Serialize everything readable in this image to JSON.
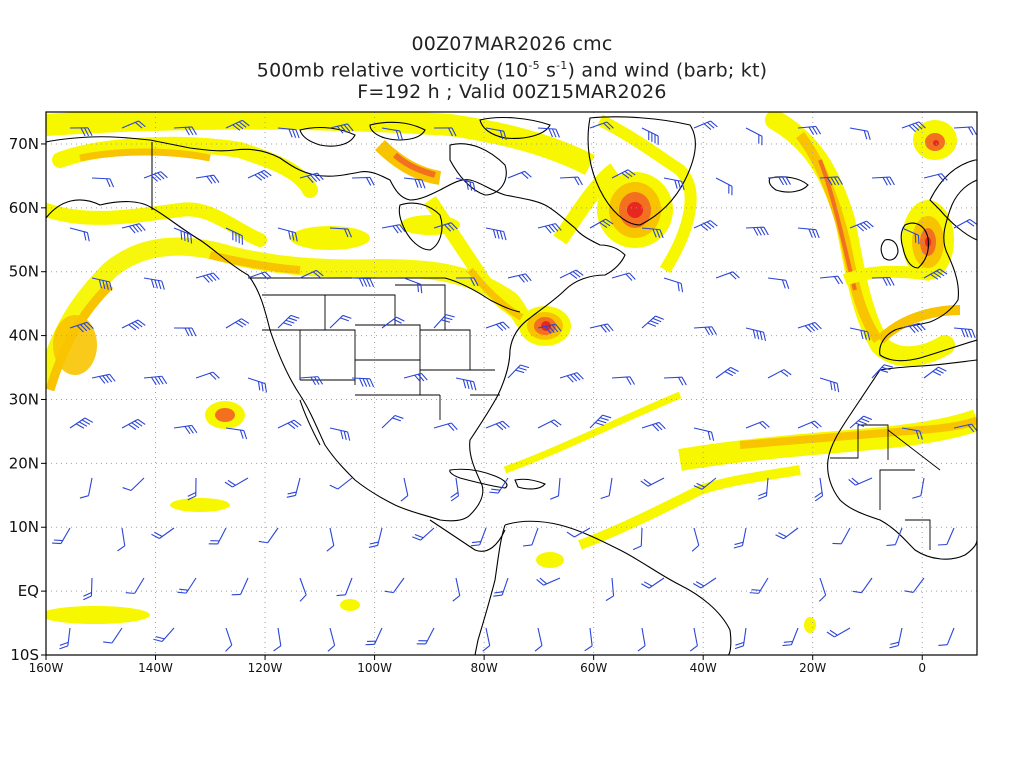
{
  "title": {
    "line1": "00Z07MAR2026 cmc",
    "line2_prefix": "500mb relative vorticity (10",
    "line2_exp1": "-5",
    "line2_mid": " s",
    "line2_exp2": "-1",
    "line2_suffix": ") and wind (barb; kt)",
    "line3": "F=192 h ; Valid 00Z15MAR2026"
  },
  "map": {
    "lon_range": [
      -160,
      10
    ],
    "lat_range": [
      -10,
      75
    ],
    "lat_ticks": [
      {
        "value": 70,
        "label": "70N"
      },
      {
        "value": 60,
        "label": "60N"
      },
      {
        "value": 50,
        "label": "50N"
      },
      {
        "value": 40,
        "label": "40N"
      },
      {
        "value": 30,
        "label": "30N"
      },
      {
        "value": 20,
        "label": "20N"
      },
      {
        "value": 10,
        "label": "10N"
      },
      {
        "value": 0,
        "label": "EQ"
      },
      {
        "value": -10,
        "label": "10S"
      }
    ],
    "lon_ticks": [
      {
        "value": -160,
        "label": "160W"
      },
      {
        "value": -140,
        "label": "140W"
      },
      {
        "value": -120,
        "label": "120W"
      },
      {
        "value": -100,
        "label": "100W"
      },
      {
        "value": -80,
        "label": "80W"
      },
      {
        "value": -60,
        "label": "60W"
      },
      {
        "value": -40,
        "label": "40W"
      },
      {
        "value": -20,
        "label": "20W"
      },
      {
        "value": 0,
        "label": "0"
      }
    ],
    "colors": {
      "vort_low": "#f7f700",
      "vort_mid": "#f8c400",
      "vort_high": "#f27020",
      "vort_max": "#e8281e",
      "barb": "#2b45d8",
      "coast": "#000000",
      "grid": "#a0a0a0"
    }
  }
}
